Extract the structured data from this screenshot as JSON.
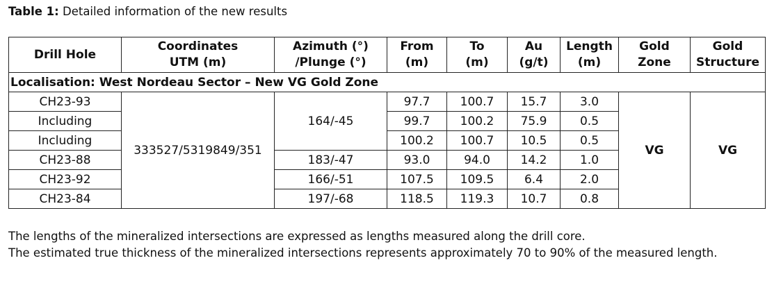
{
  "caption": {
    "label": "Table 1:",
    "text": "Detailed information of the new results"
  },
  "table": {
    "headers": [
      [
        "Drill Hole"
      ],
      [
        "Coordinates",
        "UTM (m)"
      ],
      [
        "Azimuth (°)",
        "/Plunge (°)"
      ],
      [
        "From",
        "(m)"
      ],
      [
        "To",
        "(m)"
      ],
      [
        "Au",
        "(g/t)"
      ],
      [
        "Length",
        "(m)"
      ],
      [
        "Gold",
        "Zone"
      ],
      [
        "Gold",
        "Structure"
      ]
    ],
    "section": "Localisation: West Nordeau Sector – New VG Gold Zone",
    "rows": [
      [
        "CH23-93",
        "97.7",
        "100.7",
        "15.7",
        "3.0"
      ],
      [
        "Including",
        "99.7",
        "100.2",
        "75.9",
        "0.5"
      ],
      [
        "Including",
        "100.2",
        "100.7",
        "10.5",
        "0.5"
      ],
      [
        "CH23-88",
        "93.0",
        "94.0",
        "14.2",
        "1.0"
      ],
      [
        "CH23-92",
        "107.5",
        "109.5",
        "6.4",
        "2.0"
      ],
      [
        "CH23-84",
        "118.5",
        "119.3",
        "10.7",
        "0.8"
      ]
    ],
    "coordinates": "333527/5319849/351",
    "azimuth_groups": [
      {
        "text": "164/-45",
        "span": 3
      },
      {
        "text": "183/-47",
        "span": 1
      },
      {
        "text": "166/-51",
        "span": 1
      },
      {
        "text": "197/-68",
        "span": 1
      }
    ],
    "gold_zone": "VG",
    "gold_structure": "VG"
  },
  "notes": [
    "The lengths of the mineralized intersections are expressed as lengths measured along the drill core.",
    "The estimated true thickness of the mineralized intersections represents approximately 70 to 90% of the measured length."
  ]
}
